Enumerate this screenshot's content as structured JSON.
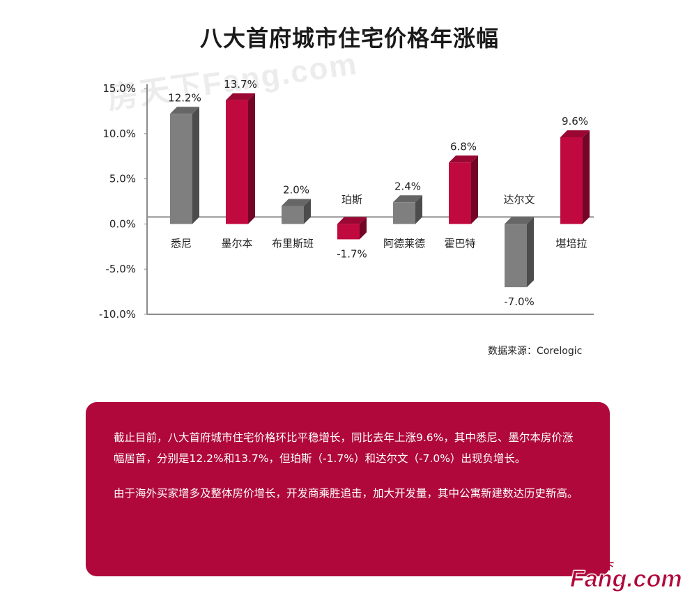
{
  "title": "八大首府城市住宅价格年涨幅",
  "watermark_top": "房天下Fang.com",
  "source": "数据来源：Corelogic",
  "text_panel": {
    "paragraph1": "截止目前，八大首府城市住宅价格环比平稳增长，同比去年上涨9.6%，其中悉尼、墨尔本房价涨幅居首，分别是12.2%和13.7%，但珀斯（-1.7%）和达尔文（-7.0%）出现负增长。",
    "paragraph2": "由于海外买家增多及整体房价增长，开发商乘胜追击，加大开发量，其中公寓新建数达历史新高。"
  },
  "logo": {
    "small": "房天下",
    "big": "Fang.com"
  },
  "chart_data": {
    "type": "bar",
    "title": "八大首府城市住宅价格年涨幅",
    "categories": [
      "悉尼",
      "墨尔本",
      "布里斯班",
      "珀斯",
      "阿德莱德",
      "霍巴特",
      "达尔文",
      "堪培拉"
    ],
    "values": [
      12.2,
      13.7,
      2.0,
      -1.7,
      2.4,
      6.8,
      -7.0,
      9.6
    ],
    "data_labels": [
      "12.2%",
      "13.7%",
      "2.0%",
      "-1.7%",
      "2.4%",
      "6.8%",
      "-7.0%",
      "9.6%"
    ],
    "bar_colors": [
      "#7f7f7f",
      "#c0093f",
      "#7f7f7f",
      "#c0093f",
      "#7f7f7f",
      "#c0093f",
      "#7f7f7f",
      "#c0093f"
    ],
    "yticks": [
      15,
      10,
      5,
      0,
      -5,
      -10
    ],
    "ytick_labels": [
      "15.0%",
      "10.0%",
      "5.0%",
      "0.0%",
      "-5.0%",
      "-10.0%"
    ],
    "ylim": [
      -10,
      15
    ],
    "grid": false,
    "style": "3d-bar"
  }
}
